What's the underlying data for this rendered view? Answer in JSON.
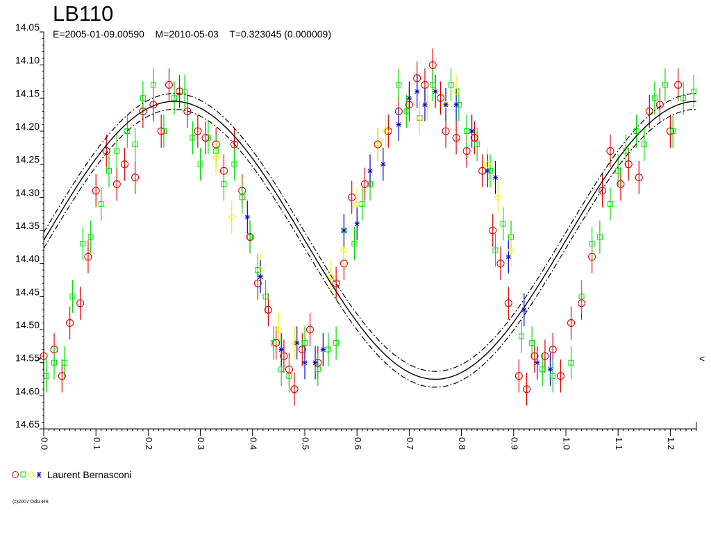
{
  "header": {
    "title": "LB110",
    "subtitle": "E=2005-01-09.00590    M=2010-05-03    T=0.323045 (0.000009)"
  },
  "legend": {
    "name": "Laurent Bernasconi",
    "symbols": [
      {
        "shape": "circle",
        "color": "#dd0000"
      },
      {
        "shape": "square",
        "color": "#00dd00"
      },
      {
        "shape": "diamond",
        "color": "#f0f000"
      },
      {
        "shape": "star",
        "color": "#0000cc"
      }
    ]
  },
  "footer": {
    "credit": "(c)2007 OdG-R8"
  },
  "colors": {
    "axis": "#000000",
    "model": "#000000"
  },
  "chart_data": {
    "type": "scatter",
    "xlabel": "",
    "ylabel": "",
    "xlim": [
      0.0,
      1.25
    ],
    "ylim": [
      14.05,
      14.65
    ],
    "y_inverted": true,
    "grid": false,
    "xticks": [
      "0.0",
      "0.1",
      "0.2",
      "0.3",
      "0.4",
      "0.5",
      "0.6",
      "0.7",
      "0.8",
      "0.9",
      "1.0",
      "1.1",
      "1.2"
    ],
    "yticks": [
      "14.05",
      "14.10",
      "14.15",
      "14.20",
      "14.25",
      "14.30",
      "14.35",
      "14.40",
      "14.45",
      "14.50",
      "14.55",
      "14.60",
      "14.65"
    ],
    "model": {
      "mean_mag": 14.365,
      "semi_amplitude": 0.21,
      "phase_of_max": 0.25,
      "envelope_offset": 0.012
    },
    "series": [
      {
        "symbol": "circle",
        "color": "#dd0000",
        "points": [
          [
            0.0,
            14.54
          ],
          [
            0.02,
            14.53
          ],
          [
            0.035,
            14.57
          ],
          [
            0.05,
            14.49
          ],
          [
            0.07,
            14.46
          ],
          [
            0.085,
            14.39
          ],
          [
            0.1,
            14.29
          ],
          [
            0.12,
            14.23
          ],
          [
            0.14,
            14.28
          ],
          [
            0.155,
            14.25
          ],
          [
            0.175,
            14.27
          ],
          [
            0.19,
            14.17
          ],
          [
            0.21,
            14.16
          ],
          [
            0.225,
            14.2
          ],
          [
            0.24,
            14.13
          ],
          [
            0.26,
            14.14
          ],
          [
            0.275,
            14.17
          ],
          [
            0.295,
            14.2
          ],
          [
            0.31,
            14.21
          ],
          [
            0.33,
            14.22
          ],
          [
            0.345,
            14.26
          ],
          [
            0.365,
            14.22
          ],
          [
            0.38,
            14.29
          ],
          [
            0.395,
            14.36
          ],
          [
            0.41,
            14.43
          ],
          [
            0.43,
            14.47
          ],
          [
            0.445,
            14.52
          ],
          [
            0.46,
            14.54
          ],
          [
            0.47,
            14.56
          ],
          [
            0.48,
            14.59
          ],
          [
            0.495,
            14.53
          ],
          [
            0.51,
            14.5
          ],
          [
            0.525,
            14.55
          ],
          [
            0.56,
            14.43
          ],
          [
            0.575,
            14.4
          ],
          [
            0.59,
            14.3
          ],
          [
            0.615,
            14.28
          ],
          [
            0.64,
            14.22
          ],
          [
            0.66,
            14.2
          ],
          [
            0.68,
            14.17
          ],
          [
            0.7,
            14.16
          ],
          [
            0.715,
            14.12
          ],
          [
            0.73,
            14.13
          ],
          [
            0.745,
            14.1
          ],
          [
            0.76,
            14.15
          ],
          [
            0.77,
            14.2
          ],
          [
            0.79,
            14.21
          ],
          [
            0.81,
            14.23
          ],
          [
            0.825,
            14.21
          ],
          [
            0.84,
            14.26
          ],
          [
            0.86,
            14.35
          ],
          [
            0.875,
            14.4
          ],
          [
            0.89,
            14.46
          ],
          [
            0.91,
            14.57
          ],
          [
            0.925,
            14.59
          ],
          [
            0.94,
            14.54
          ],
          [
            0.96,
            14.54
          ],
          [
            0.975,
            14.53
          ],
          [
            0.99,
            14.57
          ],
          [
            1.01,
            14.49
          ],
          [
            1.03,
            14.46
          ],
          [
            1.05,
            14.39
          ],
          [
            1.07,
            14.29
          ],
          [
            1.085,
            14.23
          ],
          [
            1.105,
            14.28
          ],
          [
            1.12,
            14.25
          ],
          [
            1.14,
            14.27
          ],
          [
            1.16,
            14.17
          ],
          [
            1.18,
            14.16
          ],
          [
            1.2,
            14.2
          ],
          [
            1.215,
            14.13
          ]
        ]
      },
      {
        "symbol": "square",
        "color": "#00dd00",
        "points": [
          [
            0.005,
            14.57
          ],
          [
            0.02,
            14.55
          ],
          [
            0.04,
            14.55
          ],
          [
            0.055,
            14.45
          ],
          [
            0.075,
            14.37
          ],
          [
            0.09,
            14.36
          ],
          [
            0.11,
            14.31
          ],
          [
            0.125,
            14.26
          ],
          [
            0.14,
            14.23
          ],
          [
            0.16,
            14.2
          ],
          [
            0.175,
            14.22
          ],
          [
            0.19,
            14.15
          ],
          [
            0.21,
            14.13
          ],
          [
            0.23,
            14.2
          ],
          [
            0.25,
            14.15
          ],
          [
            0.27,
            14.14
          ],
          [
            0.285,
            14.21
          ],
          [
            0.3,
            14.25
          ],
          [
            0.315,
            14.21
          ],
          [
            0.33,
            14.23
          ],
          [
            0.345,
            14.28
          ],
          [
            0.365,
            14.25
          ],
          [
            0.38,
            14.3
          ],
          [
            0.395,
            14.36
          ],
          [
            0.41,
            14.41
          ],
          [
            0.425,
            14.45
          ],
          [
            0.44,
            14.52
          ],
          [
            0.455,
            14.56
          ],
          [
            0.47,
            14.57
          ],
          [
            0.5,
            14.52
          ],
          [
            0.525,
            14.56
          ],
          [
            0.545,
            14.53
          ],
          [
            0.56,
            14.52
          ],
          [
            0.575,
            14.35
          ],
          [
            0.595,
            14.37
          ],
          [
            0.61,
            14.31
          ],
          [
            0.625,
            14.28
          ],
          [
            0.68,
            14.13
          ],
          [
            0.695,
            14.17
          ],
          [
            0.72,
            14.18
          ],
          [
            0.745,
            14.13
          ],
          [
            0.78,
            14.13
          ],
          [
            0.795,
            14.16
          ],
          [
            0.81,
            14.2
          ],
          [
            0.83,
            14.22
          ],
          [
            0.855,
            14.26
          ],
          [
            0.865,
            14.38
          ],
          [
            0.88,
            14.34
          ],
          [
            0.895,
            14.36
          ],
          [
            0.915,
            14.51
          ],
          [
            0.935,
            14.52
          ],
          [
            0.955,
            14.56
          ],
          [
            0.975,
            14.57
          ],
          [
            1.01,
            14.55
          ],
          [
            1.03,
            14.45
          ],
          [
            1.05,
            14.37
          ],
          [
            1.065,
            14.36
          ],
          [
            1.085,
            14.31
          ],
          [
            1.1,
            14.26
          ],
          [
            1.115,
            14.23
          ],
          [
            1.135,
            14.2
          ],
          [
            1.15,
            14.22
          ],
          [
            1.17,
            14.15
          ],
          [
            1.19,
            14.13
          ],
          [
            1.205,
            14.2
          ],
          [
            1.225,
            14.15
          ],
          [
            1.245,
            14.14
          ]
        ]
      },
      {
        "symbol": "diamond",
        "color": "#f0f000",
        "points": [
          [
            0.33,
            14.24
          ],
          [
            0.36,
            14.33
          ],
          [
            0.415,
            14.41
          ],
          [
            0.45,
            14.5
          ],
          [
            0.48,
            14.52
          ],
          [
            0.55,
            14.42
          ],
          [
            0.575,
            14.38
          ],
          [
            0.6,
            14.31
          ],
          [
            0.64,
            14.22
          ],
          [
            0.655,
            14.2
          ],
          [
            0.72,
            14.18
          ],
          [
            0.735,
            14.16
          ],
          [
            0.77,
            14.16
          ],
          [
            0.79,
            14.14
          ],
          [
            0.85,
            14.25
          ],
          [
            0.87,
            14.3
          ],
          [
            0.895,
            14.38
          ]
        ]
      },
      {
        "symbol": "star",
        "color": "#0000cc",
        "points": [
          [
            0.39,
            14.33
          ],
          [
            0.415,
            14.42
          ],
          [
            0.455,
            14.53
          ],
          [
            0.485,
            14.52
          ],
          [
            0.5,
            14.55
          ],
          [
            0.52,
            14.55
          ],
          [
            0.535,
            14.53
          ],
          [
            0.575,
            14.35
          ],
          [
            0.6,
            14.34
          ],
          [
            0.625,
            14.26
          ],
          [
            0.65,
            14.25
          ],
          [
            0.68,
            14.19
          ],
          [
            0.7,
            14.15
          ],
          [
            0.715,
            14.14
          ],
          [
            0.73,
            14.16
          ],
          [
            0.75,
            14.14
          ],
          [
            0.77,
            14.16
          ],
          [
            0.79,
            14.16
          ],
          [
            0.82,
            14.2
          ],
          [
            0.85,
            14.26
          ],
          [
            0.865,
            14.27
          ],
          [
            0.89,
            14.39
          ],
          [
            0.92,
            14.47
          ],
          [
            0.945,
            14.55
          ],
          [
            0.97,
            14.56
          ]
        ]
      }
    ]
  }
}
